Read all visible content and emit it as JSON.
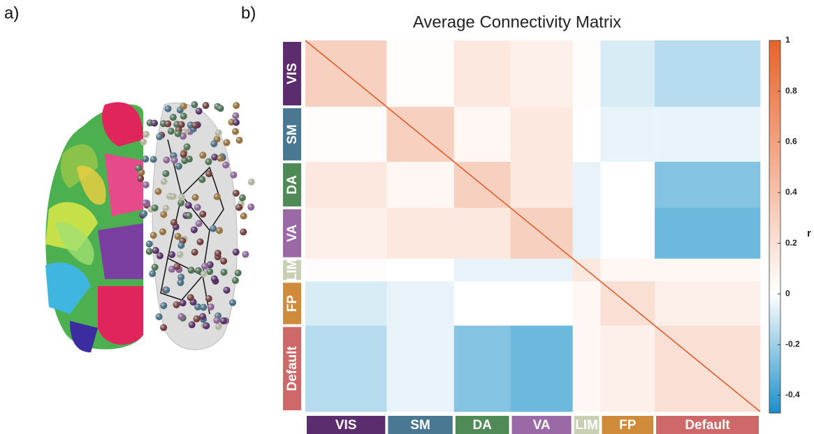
{
  "panel_labels": [
    "a)",
    "b)"
  ],
  "chart_data": {
    "type": "heatmap",
    "title": "Average Connectivity Matrix",
    "categories": [
      "VIS",
      "SM",
      "DA",
      "VA",
      "LIM",
      "FP",
      "Default"
    ],
    "category_colors": [
      "#5c2d6e",
      "#4a7892",
      "#4f8a57",
      "#9a69a6",
      "#c9cfb2",
      "#cf8a3a",
      "#cf6868"
    ],
    "values": [
      [
        0.3,
        0.02,
        0.15,
        0.1,
        0.02,
        -0.08,
        -0.15
      ],
      [
        0.02,
        0.3,
        0.05,
        0.15,
        0,
        -0.05,
        -0.05
      ],
      [
        0.15,
        0.05,
        0.3,
        0.15,
        -0.05,
        0,
        -0.25
      ],
      [
        0.1,
        0.15,
        0.15,
        0.3,
        -0.05,
        0,
        -0.3
      ],
      [
        0.02,
        0,
        -0.05,
        -0.05,
        0.15,
        0.05,
        0.05
      ],
      [
        -0.08,
        -0.05,
        0,
        0,
        0.05,
        0.2,
        0.1
      ],
      [
        -0.15,
        -0.05,
        -0.25,
        -0.3,
        0.05,
        0.1,
        0.2
      ]
    ],
    "colorbar_label": "r",
    "zlim": [
      -0.47,
      1
    ],
    "zticks": [
      -0.4,
      -0.2,
      0,
      0.2,
      0.4,
      0.6,
      0.8,
      1
    ],
    "colormap": [
      "#1a8fc9",
      "#ffffff",
      "#e8632a"
    ]
  }
}
